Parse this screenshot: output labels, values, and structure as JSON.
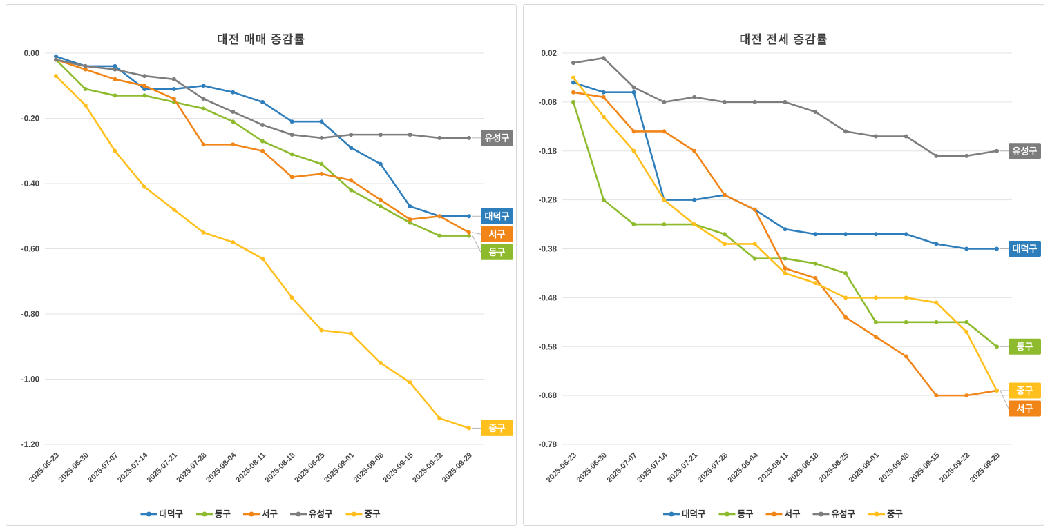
{
  "style": {
    "background": "#ffffff",
    "panel_border": "#d8d8d8",
    "grid_color": "#e3e3e3",
    "tick_color": "#474747",
    "title_color": "#3b3b3b",
    "legend_text_color": "#333333",
    "label_text_color": "#ffffff",
    "leader_color": "#b3b3b3"
  },
  "chart_data": [
    {
      "type": "line",
      "title": "대전 매매 증감률",
      "x": [
        "2025-06-23",
        "2025-06-30",
        "2025-07-07",
        "2025-07-14",
        "2025-07-21",
        "2025-07-28",
        "2025-08-04",
        "2025-08-11",
        "2025-08-18",
        "2025-08-25",
        "2025-09-01",
        "2025-09-08",
        "2025-09-15",
        "2025-09-22",
        "2025-09-29"
      ],
      "yticks": [
        0,
        -0.2,
        -0.4,
        -0.6,
        -0.8,
        -1.0,
        -1.2
      ],
      "ylim": [
        -1.2,
        0
      ],
      "grid": true,
      "legend_position": "bottom",
      "series": [
        {
          "name": "대덕구",
          "key": "daedeok-gu",
          "color": "#2e7ebc",
          "values": [
            -0.01,
            -0.04,
            -0.04,
            -0.11,
            -0.11,
            -0.1,
            -0.12,
            -0.15,
            -0.21,
            -0.21,
            -0.29,
            -0.34,
            -0.47,
            -0.5,
            -0.5
          ]
        },
        {
          "name": "동구",
          "key": "dong-gu",
          "color": "#8dbb2d",
          "values": [
            -0.02,
            -0.11,
            -0.13,
            -0.13,
            -0.15,
            -0.17,
            -0.21,
            -0.27,
            -0.31,
            -0.34,
            -0.42,
            -0.47,
            -0.52,
            -0.56,
            -0.56
          ]
        },
        {
          "name": "서구",
          "key": "seo-gu",
          "color": "#f28518",
          "values": [
            -0.02,
            -0.05,
            -0.08,
            -0.1,
            -0.14,
            -0.28,
            -0.28,
            -0.3,
            -0.38,
            -0.37,
            -0.39,
            -0.45,
            -0.51,
            -0.5,
            -0.55
          ]
        },
        {
          "name": "유성구",
          "key": "yuseong-gu",
          "color": "#7d7d7d",
          "values": [
            -0.02,
            -0.04,
            -0.05,
            -0.07,
            -0.08,
            -0.14,
            -0.18,
            -0.22,
            -0.25,
            -0.26,
            -0.25,
            -0.25,
            -0.25,
            -0.26,
            -0.26
          ]
        },
        {
          "name": "중구",
          "key": "jung-gu",
          "color": "#ffc01e",
          "values": [
            -0.07,
            -0.16,
            -0.3,
            -0.41,
            -0.48,
            -0.55,
            -0.58,
            -0.63,
            -0.75,
            -0.85,
            -0.86,
            -0.95,
            -1.01,
            -1.12,
            -1.15
          ]
        }
      ]
    },
    {
      "type": "line",
      "title": "대전 전세 증감률",
      "x": [
        "2025-06-23",
        "2025-06-30",
        "2025-07-07",
        "2025-07-14",
        "2025-07-21",
        "2025-07-28",
        "2025-08-04",
        "2025-08-11",
        "2025-08-18",
        "2025-08-25",
        "2025-09-01",
        "2025-09-08",
        "2025-09-15",
        "2025-09-22",
        "2025-09-29"
      ],
      "yticks": [
        0.02,
        -0.08,
        -0.18,
        -0.28,
        -0.38,
        -0.48,
        -0.58,
        -0.68,
        -0.78
      ],
      "ylim": [
        -0.78,
        0.02
      ],
      "grid": true,
      "legend_position": "bottom",
      "series": [
        {
          "name": "대덕구",
          "key": "daedeok-gu",
          "color": "#2e7ebc",
          "values": [
            -0.04,
            -0.06,
            -0.06,
            -0.28,
            -0.28,
            -0.27,
            -0.3,
            -0.34,
            -0.35,
            -0.35,
            -0.35,
            -0.35,
            -0.37,
            -0.38,
            -0.38
          ]
        },
        {
          "name": "동구",
          "key": "dong-gu",
          "color": "#8dbb2d",
          "values": [
            -0.08,
            -0.28,
            -0.33,
            -0.33,
            -0.33,
            -0.35,
            -0.4,
            -0.4,
            -0.41,
            -0.43,
            -0.53,
            -0.53,
            -0.53,
            -0.53,
            -0.58
          ]
        },
        {
          "name": "서구",
          "key": "seo-gu",
          "color": "#f28518",
          "values": [
            -0.06,
            -0.07,
            -0.14,
            -0.14,
            -0.18,
            -0.27,
            -0.3,
            -0.42,
            -0.44,
            -0.52,
            -0.56,
            -0.6,
            -0.68,
            -0.68,
            -0.67
          ]
        },
        {
          "name": "유성구",
          "key": "yuseong-gu",
          "color": "#7d7d7d",
          "values": [
            0.0,
            0.01,
            -0.05,
            -0.08,
            -0.07,
            -0.08,
            -0.08,
            -0.08,
            -0.1,
            -0.14,
            -0.15,
            -0.15,
            -0.19,
            -0.19,
            -0.18
          ]
        },
        {
          "name": "중구",
          "key": "jung-gu",
          "color": "#ffc01e",
          "values": [
            -0.03,
            -0.11,
            -0.18,
            -0.28,
            -0.33,
            -0.37,
            -0.37,
            -0.43,
            -0.45,
            -0.48,
            -0.48,
            -0.48,
            -0.49,
            -0.55,
            -0.67
          ]
        }
      ]
    }
  ]
}
